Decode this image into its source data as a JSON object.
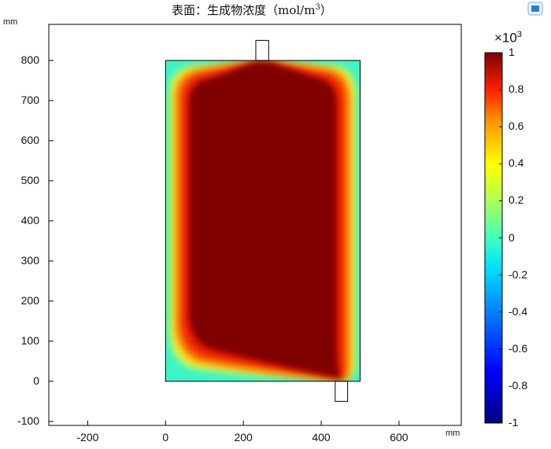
{
  "title": {
    "main": "表面：生成物浓度（mol/m",
    "sup": "3",
    "close": "）"
  },
  "toolbar_icon": "window-icon",
  "chart_data": {
    "type": "heatmap",
    "title": "表面：生成物浓度（mol/m³）",
    "x_unit": "mm",
    "y_unit": "mm",
    "xlim": [
      -300,
      760
    ],
    "ylim": [
      -110,
      890
    ],
    "x_ticks": [
      "-200",
      "0",
      "200",
      "400",
      "600"
    ],
    "y_ticks": [
      "-100",
      "0",
      "100",
      "200",
      "300",
      "400",
      "500",
      "600",
      "700",
      "800"
    ],
    "grid": false,
    "domain_rect": {
      "x": [
        0,
        500
      ],
      "y": [
        0,
        800
      ]
    },
    "inlet_port": {
      "x": [
        232,
        265
      ],
      "y": [
        800,
        850
      ]
    },
    "outlet_port": {
      "x": [
        436,
        468
      ],
      "y": [
        -50,
        0
      ]
    },
    "colorbar": {
      "min": -1,
      "max": 1,
      "multiplier": "×10",
      "multiplier_exp": "3",
      "ticks": [
        "1",
        "0.8",
        "0.6",
        "0.4",
        "0.2",
        "0",
        "-0.2",
        "-0.4",
        "-0.6",
        "-0.8",
        "-1"
      ],
      "colormap": "rainbow"
    },
    "field_description": "concentration near 1e3 in interior, near 0 along boundary"
  }
}
